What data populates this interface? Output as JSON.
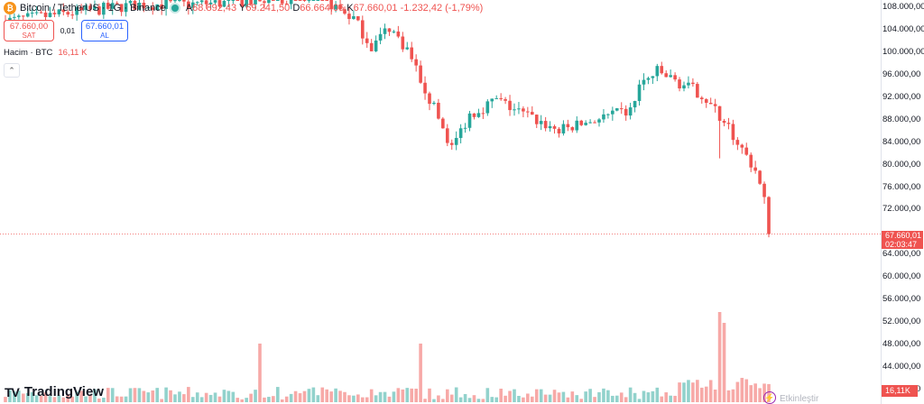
{
  "header": {
    "coin_badge": "₿",
    "title": "Bitcoin / TetherUS · 1G · Binance",
    "ohlc": {
      "open_key": "A",
      "open": "68.892,43",
      "high_key": "Y",
      "high": "69.241,50",
      "low_key": "D",
      "low": "66.664,06",
      "close_key": "K",
      "close": "67.660,01",
      "change": "-1.232,42 (-1,79%)"
    }
  },
  "trade": {
    "sell_price": "67.660,00",
    "sell_label": "SAT",
    "spread": "0,01",
    "buy_price": "67.660,01",
    "buy_label": "AL"
  },
  "volume_legend": {
    "label": "Hacim · BTC",
    "value": "16,11 K"
  },
  "collapse_icon": "⌃",
  "price_axis": {
    "ticks": [
      "108.000,00",
      "104.000,00",
      "100.000,00",
      "96.000,00",
      "92.000,00",
      "88.000,00",
      "84.000,00",
      "80.000,00",
      "76.000,00",
      "72.000,00",
      "64.000,00",
      "60.000,00",
      "56.000,00",
      "52.000,00",
      "48.000,00",
      "44.000,00",
      "40.000,00"
    ],
    "tick_values": [
      108000,
      104000,
      100000,
      96000,
      92000,
      88000,
      84000,
      80000,
      76000,
      72000,
      64000,
      60000,
      56000,
      52000,
      48000,
      44000,
      40000
    ]
  },
  "last_price": {
    "price": "67.660,01",
    "countdown": "02:03:47"
  },
  "volume_tag": "16,11K",
  "logo": {
    "mark": "TV",
    "text": "TradingView"
  },
  "footer": {
    "bolt_icon": "⚡",
    "faded_text": "Etkinleştir"
  },
  "colors": {
    "up": "#26a69a",
    "down": "#ef5350",
    "up_vol": "#92d2cc",
    "down_vol": "#f7a9a7"
  },
  "chart_data": {
    "type": "candlestick",
    "y_unit": "USDT",
    "ylim": [
      40000,
      110000
    ],
    "candle_count": 172,
    "last_close": 67660.01,
    "checkpoints": [
      [
        0,
        105500
      ],
      [
        10,
        106500
      ],
      [
        20,
        107500
      ],
      [
        30,
        108500
      ],
      [
        40,
        108500
      ],
      [
        50,
        108800
      ],
      [
        60,
        109500
      ],
      [
        70,
        110000
      ],
      [
        78,
        106000
      ],
      [
        82,
        101000
      ],
      [
        86,
        104500
      ],
      [
        90,
        100500
      ],
      [
        96,
        90000
      ],
      [
        100,
        83000
      ],
      [
        104,
        89000
      ],
      [
        110,
        91500
      ],
      [
        116,
        89000
      ],
      [
        124,
        86000
      ],
      [
        132,
        88000
      ],
      [
        140,
        89500
      ],
      [
        142,
        94000
      ],
      [
        146,
        96500
      ],
      [
        156,
        92500
      ],
      [
        162,
        86500
      ],
      [
        168,
        79000
      ],
      [
        172,
        68000
      ]
    ],
    "volume_spikes": [
      {
        "i": 57,
        "v": 49
      },
      {
        "i": 93,
        "v": 49
      },
      {
        "i": 160,
        "v": 55
      },
      {
        "i": 161,
        "v": 53
      }
    ],
    "volume_axis_note": "volume shown in BTC thousands"
  }
}
